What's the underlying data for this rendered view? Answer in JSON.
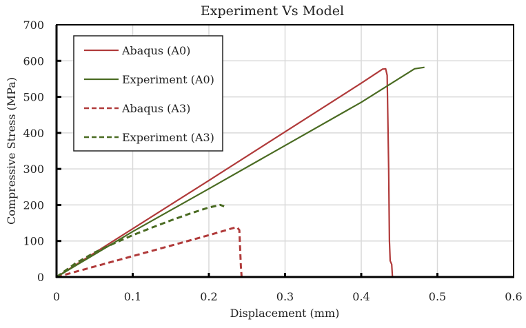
{
  "chart_data": {
    "type": "line",
    "title": "Experiment Vs Model",
    "xlabel": "Displacement (mm)",
    "ylabel": "Compressive Stress (MPa)",
    "xlim": [
      0,
      0.6
    ],
    "ylim": [
      0,
      700
    ],
    "xticks": [
      "0",
      "0.1",
      "0.2",
      "0.3",
      "0.4",
      "0.5",
      "0.6"
    ],
    "yticks": [
      "0",
      "100",
      "200",
      "300",
      "400",
      "500",
      "600",
      "700"
    ],
    "grid": true,
    "legend_position": "upper left",
    "series": [
      {
        "name": "Abaqus (A0)",
        "color": "#B03A3A",
        "dash": "solid",
        "points": [
          [
            0,
            0
          ],
          [
            0.1,
            134
          ],
          [
            0.2,
            268
          ],
          [
            0.3,
            403
          ],
          [
            0.4,
            538
          ],
          [
            0.428,
            577
          ],
          [
            0.432,
            578
          ],
          [
            0.434,
            560
          ],
          [
            0.436,
            300
          ],
          [
            0.437,
            100
          ],
          [
            0.438,
            45
          ],
          [
            0.44,
            35
          ],
          [
            0.441,
            0
          ]
        ]
      },
      {
        "name": "Experiment (A0)",
        "color": "#4A6B22",
        "dash": "solid",
        "points": [
          [
            0,
            0
          ],
          [
            0.1,
            126
          ],
          [
            0.2,
            245
          ],
          [
            0.3,
            365
          ],
          [
            0.4,
            485
          ],
          [
            0.47,
            578
          ],
          [
            0.483,
            582
          ]
        ]
      },
      {
        "name": "Abaqus (A3)",
        "color": "#B03A3A",
        "dash": "dashed",
        "points": [
          [
            0,
            0
          ],
          [
            0.05,
            29
          ],
          [
            0.1,
            58
          ],
          [
            0.15,
            87
          ],
          [
            0.2,
            116
          ],
          [
            0.232,
            136
          ],
          [
            0.237,
            138
          ],
          [
            0.24,
            130
          ],
          [
            0.241,
            80
          ],
          [
            0.242,
            30
          ],
          [
            0.243,
            0
          ]
        ]
      },
      {
        "name": "Experiment (A3)",
        "color": "#4A6B22",
        "dash": "dashed",
        "points": [
          [
            0,
            0
          ],
          [
            0.025,
            38
          ],
          [
            0.05,
            68
          ],
          [
            0.075,
            93
          ],
          [
            0.1,
            116
          ],
          [
            0.125,
            137
          ],
          [
            0.15,
            157
          ],
          [
            0.175,
            176
          ],
          [
            0.2,
            193
          ],
          [
            0.215,
            200
          ],
          [
            0.22,
            196
          ]
        ]
      }
    ]
  }
}
